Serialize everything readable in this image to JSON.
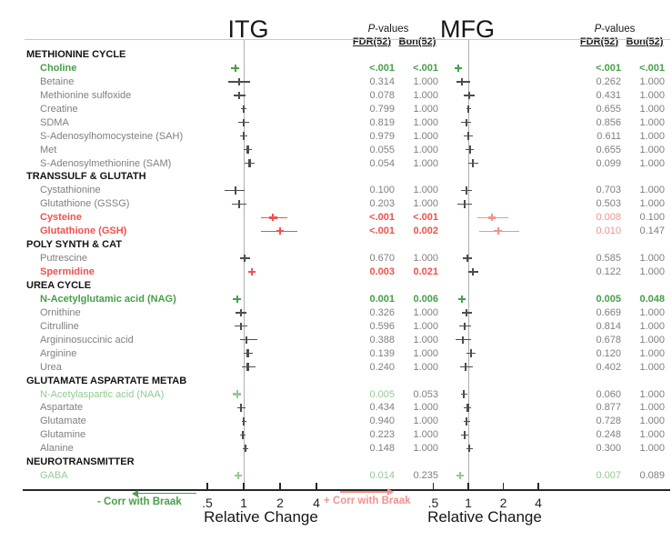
{
  "colors": {
    "green": "#46a049",
    "green_light": "#92cb92",
    "red": "#f0524b",
    "red_light": "#f5928b",
    "gray": "#4d4d4d",
    "text_gray": "#7f7f7f",
    "axis_gray": "#aeaeae",
    "rule_gray": "#c9c9c9",
    "axis_black": "#262626"
  },
  "labels": {
    "pvalues": "P-values",
    "fdr": "FDR(52)",
    "bon": "Bon(52)"
  },
  "panels": {
    "itg": {
      "title": "ITG"
    },
    "mfg": {
      "title": "MFG"
    }
  },
  "axis": {
    "xlabel": "Relative Change",
    "tick_labels": [
      ".5",
      "1",
      "2",
      "4"
    ],
    "neg_label": "- Corr with Braak",
    "pos_label": "+ Corr with Braak"
  },
  "chart_data": {
    "type": "forest",
    "x_scale": "log2",
    "x_ticks": [
      0.5,
      1,
      2,
      4
    ],
    "xlabel": "Relative Change",
    "regions": [
      "ITG",
      "MFG"
    ],
    "pvalue_columns": [
      "FDR(52)",
      "Bon(52)"
    ],
    "rows": [
      {
        "label": "METHIONINE CYCLE",
        "kind": "category"
      },
      {
        "label": "Choline",
        "kind": "metabolite",
        "style": "green",
        "itg": {
          "rc": 0.85,
          "m": "green",
          "fdr": "<.001",
          "bon": "<.001",
          "fdr_s": "green",
          "bon_s": "green"
        },
        "mfg": {
          "rc": 0.82,
          "m": "green",
          "fdr": "<.001",
          "bon": "<.001",
          "fdr_s": "green",
          "bon_s": "green"
        }
      },
      {
        "label": "Betaine",
        "kind": "metabolite",
        "style": "gray",
        "itg": {
          "rc": 0.92,
          "lo": 0.75,
          "hi": 1.12,
          "fdr": "0.314",
          "bon": "1.000"
        },
        "mfg": {
          "rc": 0.88,
          "lo": 0.79,
          "hi": 1.03,
          "fdr": "0.262",
          "bon": "1.000"
        }
      },
      {
        "label": "Methionine sulfoxide",
        "kind": "metabolite",
        "style": "gray",
        "itg": {
          "rc": 0.92,
          "lo": 0.83,
          "hi": 1.03,
          "fdr": "0.078",
          "bon": "1.000"
        },
        "mfg": {
          "rc": 1.02,
          "lo": 0.91,
          "hi": 1.14,
          "fdr": "0.431",
          "bon": "1.000"
        }
      },
      {
        "label": "Creatine",
        "kind": "metabolite",
        "style": "gray",
        "itg": {
          "rc": 1.0,
          "lo": 0.95,
          "hi": 1.06,
          "fdr": "0.799",
          "bon": "1.000"
        },
        "mfg": {
          "rc": 1.0,
          "lo": 0.96,
          "hi": 1.05,
          "fdr": "0.655",
          "bon": "1.000"
        }
      },
      {
        "label": "SDMA",
        "kind": "metabolite",
        "style": "gray",
        "itg": {
          "rc": 1.0,
          "lo": 0.9,
          "hi": 1.11,
          "fdr": "0.819",
          "bon": "1.000"
        },
        "mfg": {
          "rc": 0.96,
          "lo": 0.87,
          "hi": 1.06,
          "fdr": "0.856",
          "bon": "1.000"
        }
      },
      {
        "label": "S-Adenosylhomocysteine (SAH)",
        "kind": "metabolite",
        "style": "gray",
        "itg": {
          "rc": 1.0,
          "lo": 0.93,
          "hi": 1.08,
          "fdr": "0.979",
          "bon": "1.000"
        },
        "mfg": {
          "rc": 1.0,
          "lo": 0.92,
          "hi": 1.09,
          "fdr": "0.611",
          "bon": "1.000"
        }
      },
      {
        "label": "Met",
        "kind": "metabolite",
        "style": "gray",
        "itg": {
          "rc": 1.08,
          "lo": 1.0,
          "hi": 1.17,
          "fdr": "0.055",
          "bon": "1.000"
        },
        "mfg": {
          "rc": 1.03,
          "lo": 0.95,
          "hi": 1.12,
          "fdr": "0.655",
          "bon": "1.000"
        }
      },
      {
        "label": "S-Adenosylmethionine (SAM)",
        "kind": "metabolite",
        "style": "gray",
        "itg": {
          "rc": 1.12,
          "lo": 1.02,
          "hi": 1.24,
          "fdr": "0.054",
          "bon": "1.000"
        },
        "mfg": {
          "rc": 1.1,
          "lo": 1.0,
          "hi": 1.21,
          "fdr": "0.099",
          "bon": "1.000"
        }
      },
      {
        "label": "TRANSSULF & GLUTATH",
        "kind": "category"
      },
      {
        "label": "Cystathionine",
        "kind": "metabolite",
        "style": "gray",
        "itg": {
          "rc": 0.85,
          "lo": 0.7,
          "hi": 1.02,
          "fdr": "0.100",
          "bon": "1.000"
        },
        "mfg": {
          "rc": 0.97,
          "lo": 0.87,
          "hi": 1.08,
          "fdr": "0.703",
          "bon": "1.000"
        }
      },
      {
        "label": "Glutathione (GSSG)",
        "kind": "metabolite",
        "style": "gray",
        "itg": {
          "rc": 0.92,
          "lo": 0.8,
          "hi": 1.05,
          "fdr": "0.203",
          "bon": "1.000"
        },
        "mfg": {
          "rc": 0.93,
          "lo": 0.8,
          "hi": 1.07,
          "fdr": "0.503",
          "bon": "1.000"
        }
      },
      {
        "label": "Cysteine",
        "kind": "metabolite",
        "style": "red",
        "itg": {
          "rc": 1.75,
          "lo": 1.4,
          "hi": 2.3,
          "m": "red",
          "fdr": "<.001",
          "bon": "<.001",
          "fdr_s": "red",
          "bon_s": "red"
        },
        "mfg": {
          "rc": 1.6,
          "lo": 1.2,
          "hi": 2.2,
          "m": "red_light",
          "fdr": "0.008",
          "bon": "0.100",
          "fdr_s": "red_light"
        }
      },
      {
        "label": "Glutathione (GSH)",
        "kind": "metabolite",
        "style": "red",
        "itg": {
          "rc": 2.0,
          "lo": 1.4,
          "hi": 2.8,
          "m": "red",
          "fdr": "<.001",
          "bon": "0.002",
          "fdr_s": "red",
          "bon_s": "red"
        },
        "mfg": {
          "rc": 1.8,
          "lo": 1.25,
          "hi": 2.75,
          "m": "red_light",
          "fdr": "0.010",
          "bon": "0.147",
          "fdr_s": "red_light"
        }
      },
      {
        "label": "POLY SYNTH & CAT",
        "kind": "category"
      },
      {
        "label": "Putrescine",
        "kind": "metabolite",
        "style": "gray",
        "itg": {
          "rc": 1.02,
          "lo": 0.93,
          "hi": 1.12,
          "fdr": "0.670",
          "bon": "1.000"
        },
        "mfg": {
          "rc": 0.98,
          "lo": 0.9,
          "hi": 1.07,
          "fdr": "0.585",
          "bon": "1.000"
        }
      },
      {
        "label": "Spermidine",
        "kind": "metabolite",
        "style": "red",
        "itg": {
          "rc": 1.17,
          "m": "red",
          "fdr": "0.003",
          "bon": "0.021",
          "fdr_s": "red",
          "bon_s": "red"
        },
        "mfg": {
          "rc": 1.1,
          "lo": 1.0,
          "hi": 1.21,
          "fdr": "0.122",
          "bon": "1.000"
        }
      },
      {
        "label": "UREA CYCLE",
        "kind": "category"
      },
      {
        "label": "N-Acetylglutamic acid (NAG)",
        "kind": "metabolite",
        "style": "green",
        "itg": {
          "rc": 0.88,
          "m": "green",
          "fdr": "0.001",
          "bon": "0.006",
          "fdr_s": "green",
          "bon_s": "green"
        },
        "mfg": {
          "rc": 0.88,
          "m": "green",
          "fdr": "0.005",
          "bon": "0.048",
          "fdr_s": "green",
          "bon_s": "green"
        }
      },
      {
        "label": "Ornithine",
        "kind": "metabolite",
        "style": "gray",
        "itg": {
          "rc": 0.95,
          "lo": 0.85,
          "hi": 1.06,
          "fdr": "0.326",
          "bon": "1.000"
        },
        "mfg": {
          "rc": 0.97,
          "lo": 0.88,
          "hi": 1.07,
          "fdr": "0.669",
          "bon": "1.000"
        }
      },
      {
        "label": "Citrulline",
        "kind": "metabolite",
        "style": "gray",
        "itg": {
          "rc": 0.95,
          "lo": 0.84,
          "hi": 1.07,
          "fdr": "0.596",
          "bon": "1.000"
        },
        "mfg": {
          "rc": 0.93,
          "lo": 0.83,
          "hi": 1.05,
          "fdr": "0.814",
          "bon": "1.000"
        }
      },
      {
        "label": "Argininosuccinic acid",
        "kind": "metabolite",
        "style": "gray",
        "itg": {
          "rc": 1.05,
          "lo": 0.93,
          "hi": 1.3,
          "fdr": "0.388",
          "bon": "1.000"
        },
        "mfg": {
          "rc": 0.9,
          "lo": 0.78,
          "hi": 1.05,
          "fdr": "0.678",
          "bon": "1.000"
        }
      },
      {
        "label": "Arginine",
        "kind": "metabolite",
        "style": "gray",
        "itg": {
          "rc": 1.08,
          "lo": 1.0,
          "hi": 1.18,
          "fdr": "0.139",
          "bon": "1.000"
        },
        "mfg": {
          "rc": 1.06,
          "lo": 0.97,
          "hi": 1.16,
          "fdr": "0.120",
          "bon": "1.000"
        }
      },
      {
        "label": "Urea",
        "kind": "metabolite",
        "style": "gray",
        "itg": {
          "rc": 1.08,
          "lo": 0.97,
          "hi": 1.25,
          "fdr": "0.240",
          "bon": "1.000"
        },
        "mfg": {
          "rc": 0.95,
          "lo": 0.85,
          "hi": 1.1,
          "fdr": "0.402",
          "bon": "1.000"
        }
      },
      {
        "label": "GLUTAMATE ASPARTATE METAB",
        "kind": "category"
      },
      {
        "label": "N-Acetylaspartic acid (NAA)",
        "kind": "metabolite",
        "style": "green_light",
        "itg": {
          "rc": 0.88,
          "m": "green_light",
          "fdr": "0.005",
          "bon": "0.053",
          "fdr_s": "green_light"
        },
        "mfg": {
          "rc": 0.92,
          "lo": 0.86,
          "hi": 0.99,
          "fdr": "0.060",
          "bon": "1.000"
        }
      },
      {
        "label": "Aspartate",
        "kind": "metabolite",
        "style": "gray",
        "itg": {
          "rc": 0.95,
          "lo": 0.88,
          "hi": 1.03,
          "fdr": "0.434",
          "bon": "1.000"
        },
        "mfg": {
          "rc": 0.99,
          "lo": 0.92,
          "hi": 1.06,
          "fdr": "0.877",
          "bon": "1.000"
        }
      },
      {
        "label": "Glutamate",
        "kind": "metabolite",
        "style": "gray",
        "itg": {
          "rc": 1.0,
          "lo": 0.96,
          "hi": 1.05,
          "fdr": "0.940",
          "bon": "1.000"
        },
        "mfg": {
          "rc": 0.97,
          "lo": 0.91,
          "hi": 1.04,
          "fdr": "0.728",
          "bon": "1.000"
        }
      },
      {
        "label": "Glutamine",
        "kind": "metabolite",
        "style": "gray",
        "itg": {
          "rc": 0.98,
          "lo": 0.93,
          "hi": 1.04,
          "fdr": "0.223",
          "bon": "1.000"
        },
        "mfg": {
          "rc": 0.93,
          "lo": 0.87,
          "hi": 1.0,
          "fdr": "0.248",
          "bon": "1.000"
        }
      },
      {
        "label": "Alanine",
        "kind": "metabolite",
        "style": "gray",
        "itg": {
          "rc": 1.04,
          "lo": 0.99,
          "hi": 1.1,
          "fdr": "0.148",
          "bon": "1.000"
        },
        "mfg": {
          "rc": 1.02,
          "lo": 0.96,
          "hi": 1.09,
          "fdr": "0.300",
          "bon": "1.000"
        }
      },
      {
        "label": "NEUROTRANSMITTER",
        "kind": "category"
      },
      {
        "label": "GABA",
        "kind": "metabolite",
        "style": "green_light",
        "itg": {
          "rc": 0.9,
          "m": "green_light",
          "fdr": "0.014",
          "bon": "0.235",
          "fdr_s": "green_light"
        },
        "mfg": {
          "rc": 0.85,
          "m": "green_light",
          "fdr": "0.007",
          "bon": "0.089",
          "fdr_s": "green_light"
        }
      }
    ]
  }
}
